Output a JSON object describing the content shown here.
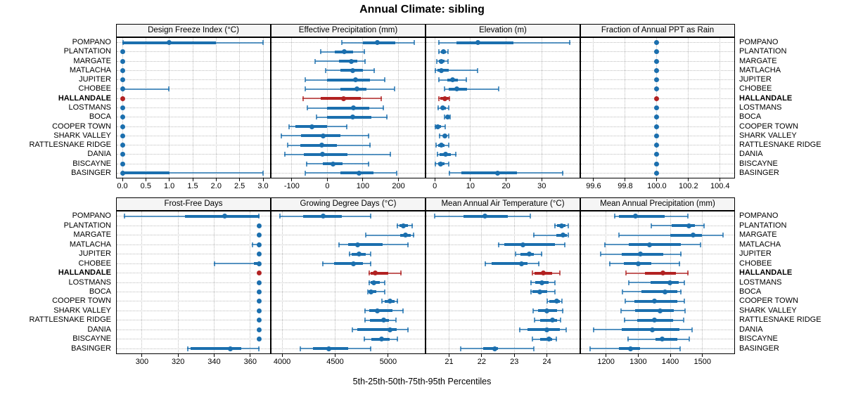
{
  "title": "Annual Climate: sibling",
  "caption": "5th-25th-50th-75th-95th Percentiles",
  "highlight_station": "HALLANDALE",
  "colors": {
    "series": "#1b6fae",
    "highlight": "#b22222",
    "grid": "#bdbdbd",
    "strip_bg": "#f5f5f5",
    "panel_border": "#000000"
  },
  "chart_data": {
    "type": "dotplot-percentile-intervals",
    "percentiles": [
      5,
      25,
      50,
      75,
      95
    ],
    "legend_note": "thin line = 5th-95th, thick bar = 25th-75th, dot = median",
    "stations": [
      "POMPANO",
      "PLANTATION",
      "MARGATE",
      "MATLACHA",
      "JUPITER",
      "CHOBEE",
      "HALLANDALE",
      "LOSTMANS",
      "BOCA",
      "COOPER TOWN",
      "SHARK VALLEY",
      "RATTLESNAKE RIDGE",
      "DANIA",
      "BISCAYNE",
      "BASINGER"
    ],
    "panels": [
      {
        "title": "Design Freeze Index (°C)",
        "range": [
          -0.12,
          3.15
        ],
        "ticks": [
          0,
          0.5,
          1,
          1.5,
          2,
          2.5,
          3
        ],
        "tick_labels": [
          "0.0",
          "0.5",
          "1.0",
          "1.5",
          "2.0",
          "2.5",
          "3.0"
        ],
        "values": [
          [
            0,
            0,
            1,
            2,
            3
          ],
          [
            0,
            0,
            0,
            0,
            0
          ],
          [
            0,
            0,
            0,
            0,
            0
          ],
          [
            0,
            0,
            0,
            0,
            0
          ],
          [
            0,
            0,
            0,
            0,
            0
          ],
          [
            0,
            0,
            0,
            0,
            1
          ],
          [
            0,
            0,
            0,
            0,
            0
          ],
          [
            0,
            0,
            0,
            0,
            0
          ],
          [
            0,
            0,
            0,
            0,
            0
          ],
          [
            0,
            0,
            0,
            0,
            0
          ],
          [
            0,
            0,
            0,
            0,
            0
          ],
          [
            0,
            0,
            0,
            0,
            0
          ],
          [
            0,
            0,
            0,
            0,
            0
          ],
          [
            0,
            0,
            0,
            0,
            0
          ],
          [
            0,
            0,
            0,
            1,
            3
          ]
        ]
      },
      {
        "title": "Effective Precipitation (mm)",
        "range": [
          -157,
          274
        ],
        "ticks": [
          -100,
          0,
          100,
          200
        ],
        "tick_labels": [
          "-100",
          "0",
          "100",
          "200"
        ],
        "values": [
          [
            40,
            100,
            140,
            190,
            245
          ],
          [
            -20,
            20,
            48,
            73,
            105
          ],
          [
            -35,
            32,
            68,
            85,
            107
          ],
          [
            -5,
            37,
            72,
            100,
            133
          ],
          [
            -63,
            0,
            80,
            120,
            163
          ],
          [
            -63,
            37,
            84,
            110,
            190
          ],
          [
            -70,
            -18,
            46,
            95,
            153
          ],
          [
            -57,
            0,
            74,
            117,
            159
          ],
          [
            -31,
            0,
            72,
            124,
            169
          ],
          [
            -108,
            -89,
            -44,
            0,
            56
          ],
          [
            -131,
            -73,
            -12,
            37,
            117
          ],
          [
            -112,
            -76,
            -15,
            27,
            121
          ],
          [
            -121,
            -66,
            -14,
            56,
            179
          ],
          [
            -60,
            -12,
            16,
            43,
            117
          ],
          [
            -63,
            37,
            90,
            130,
            195
          ]
        ]
      },
      {
        "title": "Elevation (m)",
        "range": [
          -2.4,
          40.6
        ],
        "ticks": [
          0,
          10,
          20,
          30
        ],
        "tick_labels": [
          "0",
          "10",
          "20",
          "30"
        ],
        "values": [
          [
            1,
            6,
            12,
            22,
            38
          ],
          [
            1,
            1.8,
            2.4,
            3.2,
            3.8
          ],
          [
            0.5,
            1.2,
            1.8,
            2.8,
            3.8
          ],
          [
            0,
            0.8,
            1.9,
            4,
            12
          ],
          [
            1,
            3.5,
            5,
            6.5,
            9
          ],
          [
            2.7,
            4,
            6.2,
            9,
            18
          ],
          [
            1,
            1.5,
            2.9,
            4,
            4.3
          ],
          [
            0.8,
            1.8,
            2.3,
            3.2,
            4
          ],
          [
            2.7,
            3.2,
            3.6,
            4,
            4.4
          ],
          [
            0,
            0.5,
            0.9,
            1.8,
            3
          ],
          [
            1.2,
            2.4,
            2.8,
            3.4,
            4
          ],
          [
            0.3,
            1,
            1.8,
            2.8,
            4
          ],
          [
            0.6,
            1.4,
            3,
            4.6,
            6
          ],
          [
            0,
            1,
            1.7,
            2.8,
            4
          ],
          [
            4,
            7.5,
            17.7,
            23,
            36
          ]
        ]
      },
      {
        "title": "Fraction of Annual PPT as Rain",
        "range": [
          99.52,
          100.49
        ],
        "ticks": [
          99.6,
          99.8,
          100.0,
          100.2,
          100.4
        ],
        "tick_labels": [
          "99.6",
          "99.8",
          "100.0",
          "100.2",
          "100.4"
        ],
        "values": [
          [
            100,
            100,
            100,
            100,
            100
          ],
          [
            100,
            100,
            100,
            100,
            100
          ],
          [
            100,
            100,
            100,
            100,
            100
          ],
          [
            100,
            100,
            100,
            100,
            100
          ],
          [
            100,
            100,
            100,
            100,
            100
          ],
          [
            100,
            100,
            100,
            100,
            100
          ],
          [
            100,
            100,
            100,
            100,
            100
          ],
          [
            100,
            100,
            100,
            100,
            100
          ],
          [
            100,
            100,
            100,
            100,
            100
          ],
          [
            100,
            100,
            100,
            100,
            100
          ],
          [
            100,
            100,
            100,
            100,
            100
          ],
          [
            100,
            100,
            100,
            100,
            100
          ],
          [
            100,
            100,
            100,
            100,
            100
          ],
          [
            100,
            100,
            100,
            100,
            100
          ],
          [
            100,
            100,
            100,
            100,
            100
          ]
        ]
      },
      {
        "title": "Frost-Free Days",
        "range": [
          286,
          371
        ],
        "ticks": [
          300,
          320,
          340,
          360
        ],
        "tick_labels": [
          "300",
          "320",
          "340",
          "360"
        ],
        "values": [
          [
            290,
            324,
            346,
            365,
            365
          ],
          [
            365,
            365,
            365,
            365,
            365
          ],
          [
            365,
            365,
            365,
            365,
            365
          ],
          [
            361,
            364,
            365,
            365,
            365
          ],
          [
            365,
            365,
            365,
            365,
            365
          ],
          [
            340,
            362,
            365,
            365,
            365
          ],
          [
            365,
            365,
            365,
            365,
            365
          ],
          [
            365,
            365,
            365,
            365,
            365
          ],
          [
            365,
            365,
            365,
            365,
            365
          ],
          [
            365,
            365,
            365,
            365,
            365
          ],
          [
            365,
            365,
            365,
            365,
            365
          ],
          [
            365,
            365,
            365,
            365,
            365
          ],
          [
            365,
            365,
            365,
            365,
            365
          ],
          [
            365,
            365,
            365,
            365,
            365
          ],
          [
            325,
            327,
            349,
            355,
            365
          ]
        ]
      },
      {
        "title": "Growing Degree Days (°C)",
        "range": [
          3900,
          5345
        ],
        "ticks": [
          4000,
          4500,
          5000
        ],
        "tick_labels": [
          "4000",
          "4500",
          "5000"
        ],
        "values": [
          [
            3975,
            4200,
            4385,
            4560,
            4840
          ],
          [
            5080,
            5105,
            5140,
            5185,
            5230
          ],
          [
            4785,
            5110,
            5165,
            5210,
            5245
          ],
          [
            4530,
            4620,
            4710,
            4950,
            5190
          ],
          [
            4630,
            4655,
            4725,
            4785,
            4835
          ],
          [
            4380,
            4490,
            4670,
            4760,
            4840
          ],
          [
            4815,
            4835,
            4875,
            5000,
            5125
          ],
          [
            4815,
            4835,
            4865,
            4920,
            4970
          ],
          [
            4805,
            4815,
            4840,
            4885,
            4970
          ],
          [
            4940,
            4970,
            5020,
            5060,
            5090
          ],
          [
            4775,
            4820,
            4895,
            5040,
            5145
          ],
          [
            4775,
            4830,
            4955,
            5005,
            5075
          ],
          [
            4660,
            4710,
            5020,
            5080,
            5190
          ],
          [
            4770,
            4840,
            4940,
            5015,
            5090
          ],
          [
            4170,
            4290,
            4440,
            4620,
            4840
          ]
        ]
      },
      {
        "title": "Mean Annual Air Temperature (°C)",
        "range": [
          20.3,
          25.0
        ],
        "ticks": [
          21,
          22,
          23,
          24
        ],
        "tick_labels": [
          "21",
          "22",
          "23",
          "24"
        ],
        "values": [
          [
            20.55,
            21.45,
            22.1,
            22.8,
            23.5
          ],
          [
            24.23,
            24.3,
            24.44,
            24.56,
            24.66
          ],
          [
            23.58,
            24.28,
            24.5,
            24.62,
            24.66
          ],
          [
            22.5,
            22.7,
            23.27,
            24.25,
            24.56
          ],
          [
            23.03,
            23.18,
            23.45,
            23.6,
            23.85
          ],
          [
            22.1,
            22.3,
            23.22,
            23.4,
            23.77
          ],
          [
            23.55,
            23.62,
            23.9,
            24.15,
            24.4
          ],
          [
            23.5,
            23.65,
            23.85,
            24.05,
            24.25
          ],
          [
            23.5,
            23.55,
            23.78,
            24.0,
            24.25
          ],
          [
            24.0,
            24.07,
            24.3,
            24.4,
            24.47
          ],
          [
            23.57,
            23.72,
            24.0,
            24.3,
            24.5
          ],
          [
            23.62,
            23.8,
            24.17,
            24.3,
            24.42
          ],
          [
            23.15,
            23.4,
            24.0,
            24.4,
            24.6
          ],
          [
            23.55,
            23.8,
            24.07,
            24.17,
            24.3
          ],
          [
            21.35,
            22.05,
            22.4,
            22.5,
            23.6
          ]
        ]
      },
      {
        "title": "Mean Annual Precipitation (mm)",
        "range": [
          1122,
          1599
        ],
        "ticks": [
          1200,
          1300,
          1400,
          1500
        ],
        "tick_labels": [
          "1200",
          "1300",
          "1400",
          "1500"
        ],
        "values": [
          [
            1225,
            1240,
            1292,
            1382,
            1455
          ],
          [
            1340,
            1405,
            1457,
            1477,
            1507
          ],
          [
            1240,
            1400,
            1470,
            1498,
            1565
          ],
          [
            1195,
            1270,
            1335,
            1433,
            1494
          ],
          [
            1183,
            1248,
            1306,
            1379,
            1434
          ],
          [
            1210,
            1256,
            1300,
            1340,
            1430
          ],
          [
            1261,
            1321,
            1378,
            1418,
            1456
          ],
          [
            1270,
            1339,
            1398,
            1426,
            1444
          ],
          [
            1251,
            1310,
            1384,
            1422,
            1434
          ],
          [
            1259,
            1288,
            1350,
            1422,
            1444
          ],
          [
            1246,
            1290,
            1368,
            1410,
            1446
          ],
          [
            1256,
            1296,
            1350,
            1408,
            1442
          ],
          [
            1160,
            1248,
            1345,
            1429,
            1468
          ],
          [
            1267,
            1353,
            1375,
            1422,
            1460
          ],
          [
            1150,
            1241,
            1276,
            1306,
            1431
          ]
        ]
      }
    ]
  }
}
